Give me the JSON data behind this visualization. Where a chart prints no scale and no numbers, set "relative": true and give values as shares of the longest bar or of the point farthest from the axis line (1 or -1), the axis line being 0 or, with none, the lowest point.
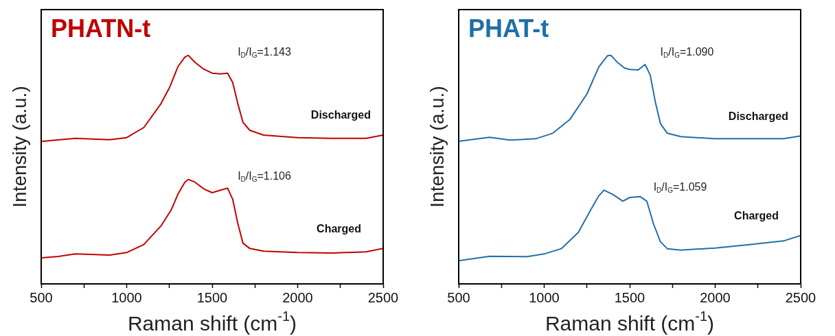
{
  "chart_data": [
    {
      "type": "line",
      "title": "PHATN-t",
      "xlabel": "Raman shift (cm$^{-1}$)",
      "ylabel": "Intensity (a.u.)",
      "relative": true,
      "xlim": [
        500,
        2500
      ],
      "xticks": [
        500,
        {
          "value": 750,
          "label": null
        },
        1000,
        {
          "value": 1250,
          "label": null
        },
        1500,
        {
          "value": 1750,
          "label": null
        },
        2000,
        {
          "value": 2250,
          "label": null
        },
        2500
      ],
      "annotations": [
        "I$_{D}$/I$_{G}$=1.143",
        "I$_{D}$/I$_{G}$=1.106"
      ],
      "series": [
        {
          "name": "Discharged",
          "color": "#c00000",
          "x": [
            500,
            700,
            900,
            1000,
            1100,
            1200,
            1250,
            1300,
            1340,
            1360,
            1400,
            1450,
            1500,
            1550,
            1590,
            1620,
            1650,
            1680,
            1720,
            1800,
            2000,
            2200,
            2400,
            2500
          ],
          "values": [
            0.623,
            0.637,
            0.631,
            0.64,
            0.684,
            0.788,
            0.858,
            0.951,
            0.992,
            1.0,
            0.969,
            0.94,
            0.922,
            0.919,
            0.922,
            0.881,
            0.788,
            0.707,
            0.672,
            0.651,
            0.64,
            0.637,
            0.637,
            0.651
          ]
        },
        {
          "name": "Charged",
          "color": "#c00000",
          "x": [
            500,
            600,
            700,
            900,
            1000,
            1100,
            1200,
            1260,
            1300,
            1340,
            1360,
            1400,
            1450,
            1500,
            1550,
            1590,
            1620,
            1650,
            1680,
            1720,
            1800,
            2000,
            2200,
            2400,
            2500
          ],
          "values": [
            0.114,
            0.12,
            0.131,
            0.126,
            0.137,
            0.172,
            0.253,
            0.323,
            0.393,
            0.445,
            0.457,
            0.445,
            0.416,
            0.399,
            0.41,
            0.419,
            0.37,
            0.265,
            0.178,
            0.155,
            0.143,
            0.137,
            0.135,
            0.14,
            0.155
          ]
        }
      ]
    },
    {
      "type": "line",
      "title": "PHAT-t",
      "xlabel": "Raman shift (cm$^{-1}$)",
      "ylabel": "Intensity (a.u.)",
      "relative": true,
      "xlim": [
        500,
        2500
      ],
      "xticks": [
        500,
        {
          "value": 750,
          "label": null
        },
        1000,
        {
          "value": 1250,
          "label": null
        },
        1500,
        {
          "value": 1750,
          "label": null
        },
        2000,
        {
          "value": 2250,
          "label": null
        },
        2500
      ],
      "annotations": [
        "I$_{D}$/I$_{G}$=1.090",
        "I$_{D}$/I$_{G}$=1.059"
      ],
      "series": [
        {
          "name": "Discharged",
          "color": "#1f6fa8",
          "x": [
            500,
            680,
            800,
            950,
            1050,
            1150,
            1250,
            1320,
            1370,
            1390,
            1430,
            1470,
            1500,
            1550,
            1590,
            1620,
            1650,
            1680,
            1720,
            1800,
            2000,
            2200,
            2400,
            2500
          ],
          "values": [
            0.624,
            0.641,
            0.629,
            0.635,
            0.659,
            0.719,
            0.831,
            0.95,
            0.998,
            1.0,
            0.968,
            0.944,
            0.938,
            0.936,
            0.96,
            0.914,
            0.796,
            0.701,
            0.659,
            0.644,
            0.635,
            0.635,
            0.635,
            0.647
          ]
        },
        {
          "name": "Charged",
          "color": "#1f6fa8",
          "x": [
            500,
            680,
            900,
            1000,
            1100,
            1200,
            1270,
            1320,
            1350,
            1400,
            1460,
            1500,
            1560,
            1600,
            1640,
            1680,
            1720,
            1800,
            2000,
            2200,
            2400,
            2500
          ],
          "values": [
            0.101,
            0.121,
            0.119,
            0.131,
            0.154,
            0.226,
            0.321,
            0.386,
            0.41,
            0.392,
            0.362,
            0.378,
            0.382,
            0.362,
            0.261,
            0.184,
            0.154,
            0.148,
            0.157,
            0.172,
            0.188,
            0.212
          ]
        }
      ]
    }
  ]
}
